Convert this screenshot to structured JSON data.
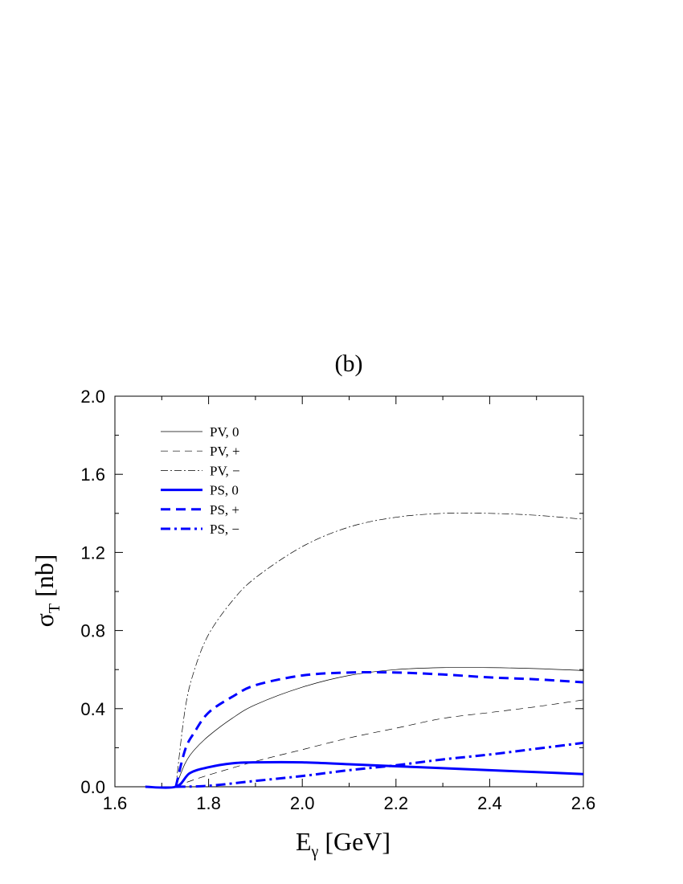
{
  "chart_data": {
    "type": "line",
    "title": "(b)",
    "xlabel": {
      "main": "E",
      "sub": "γ",
      "unit": " [GeV]"
    },
    "ylabel": {
      "main": "σ",
      "sub": "T",
      "unit": " [nb]"
    },
    "xlim": [
      1.6,
      2.6
    ],
    "ylim": [
      0.0,
      2.0
    ],
    "xticks": [
      1.6,
      1.8,
      2.0,
      2.2,
      2.4,
      2.6
    ],
    "xtick_labels": [
      "1.6",
      "1.8",
      "2.0",
      "2.2",
      "2.4",
      "2.6"
    ],
    "yticks": [
      0.0,
      0.4,
      0.8,
      1.2,
      1.6,
      2.0
    ],
    "ytick_labels": [
      "0.0",
      "0.4",
      "0.8",
      "1.2",
      "1.6",
      "2.0"
    ],
    "grid": false,
    "legend_position": "top-left",
    "series": [
      {
        "name": "PV, 0",
        "color": "#000000",
        "width": 0.7,
        "dash": "",
        "x": [
          1.73,
          1.75,
          1.77,
          1.8,
          1.85,
          1.9,
          2.0,
          2.1,
          2.2,
          2.3,
          2.4,
          2.5,
          2.6
        ],
        "y": [
          0.0,
          0.12,
          0.19,
          0.26,
          0.35,
          0.42,
          0.51,
          0.57,
          0.6,
          0.61,
          0.61,
          0.605,
          0.595
        ]
      },
      {
        "name": "PV, +",
        "color": "#000000",
        "width": 0.7,
        "dash": "9,6",
        "x": [
          1.73,
          1.75,
          1.8,
          1.9,
          2.0,
          2.1,
          2.2,
          2.3,
          2.4,
          2.5,
          2.6
        ],
        "y": [
          0.0,
          0.02,
          0.06,
          0.13,
          0.19,
          0.25,
          0.3,
          0.35,
          0.38,
          0.41,
          0.445
        ]
      },
      {
        "name": "PV, −",
        "color": "#000000",
        "width": 0.7,
        "dash": "9,3,2,3",
        "x": [
          1.73,
          1.75,
          1.77,
          1.8,
          1.85,
          1.9,
          2.0,
          2.1,
          2.2,
          2.3,
          2.4,
          2.5,
          2.6
        ],
        "y": [
          0.0,
          0.4,
          0.6,
          0.78,
          0.95,
          1.07,
          1.23,
          1.33,
          1.38,
          1.4,
          1.4,
          1.39,
          1.37
        ]
      },
      {
        "name": "PS, 0",
        "color": "#0000ff",
        "width": 3,
        "dash": "",
        "x": [
          1.665,
          1.73,
          1.76,
          1.8,
          1.85,
          1.9,
          2.0,
          2.1,
          2.2,
          2.3,
          2.4,
          2.5,
          2.6
        ],
        "y": [
          0.0,
          0.0,
          0.07,
          0.1,
          0.12,
          0.125,
          0.125,
          0.115,
          0.105,
          0.095,
          0.085,
          0.075,
          0.065
        ]
      },
      {
        "name": "PS, +",
        "color": "#0000ff",
        "width": 3,
        "dash": "12,7",
        "x": [
          1.73,
          1.75,
          1.77,
          1.8,
          1.85,
          1.9,
          2.0,
          2.1,
          2.2,
          2.3,
          2.4,
          2.5,
          2.6
        ],
        "y": [
          0.0,
          0.19,
          0.28,
          0.38,
          0.46,
          0.52,
          0.57,
          0.585,
          0.585,
          0.575,
          0.56,
          0.55,
          0.535
        ]
      },
      {
        "name": "PS, −",
        "color": "#0000ff",
        "width": 3,
        "dash": "12,5,3,5",
        "x": [
          1.73,
          1.8,
          1.9,
          2.0,
          2.1,
          2.2,
          2.3,
          2.4,
          2.5,
          2.6
        ],
        "y": [
          0.0,
          0.005,
          0.03,
          0.055,
          0.085,
          0.11,
          0.14,
          0.165,
          0.195,
          0.225
        ]
      }
    ]
  }
}
